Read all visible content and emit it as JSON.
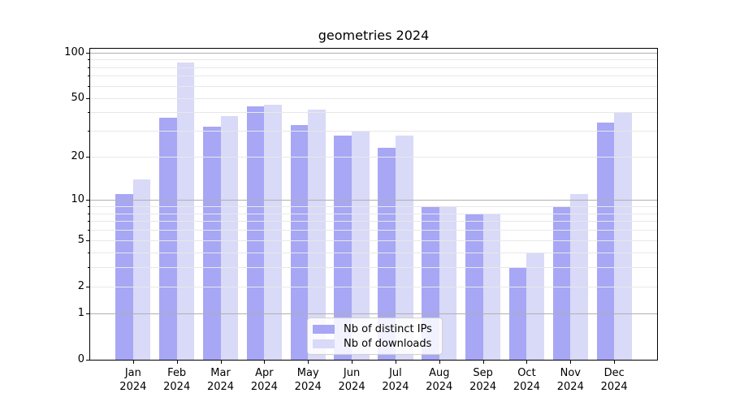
{
  "chart_data": {
    "type": "bar",
    "title": "geometries 2024",
    "categories": [
      "Jan 2024",
      "Feb 2024",
      "Mar 2024",
      "Apr 2024",
      "May 2024",
      "Jun 2024",
      "Jul 2024",
      "Aug 2024",
      "Sep 2024",
      "Oct 2024",
      "Nov 2024",
      "Dec 2024"
    ],
    "series": [
      {
        "name": "Nb of distinct IPs",
        "color": "#a7a7f5",
        "values": [
          11,
          37,
          32,
          44,
          33,
          28,
          23,
          9,
          8,
          3,
          9,
          34
        ]
      },
      {
        "name": "Nb of downloads",
        "color": "#d9d9f8",
        "values": [
          14,
          86,
          38,
          45,
          42,
          30,
          28,
          9,
          8,
          4,
          11,
          40
        ]
      }
    ],
    "y_axis": {
      "scale": "log1p",
      "tick_labels": [
        "0",
        "1",
        "2",
        "5",
        "10",
        "20",
        "50",
        "100"
      ],
      "ticks": [
        0,
        1,
        2,
        5,
        10,
        20,
        50,
        100
      ],
      "range": [
        0,
        107
      ]
    },
    "x_axis": {
      "tick_count": 12
    },
    "grid": {
      "horizontal": true,
      "minor_values": [
        2,
        3,
        4,
        5,
        6,
        7,
        8,
        9,
        20,
        30,
        40,
        50,
        60,
        70,
        80,
        90
      ],
      "major_values": [
        1,
        10,
        100
      ],
      "minor_color": "#e8e8e8",
      "major_color": "#b0b0b0"
    },
    "legend": {
      "position": "lower center"
    },
    "background": "#ffffff"
  }
}
